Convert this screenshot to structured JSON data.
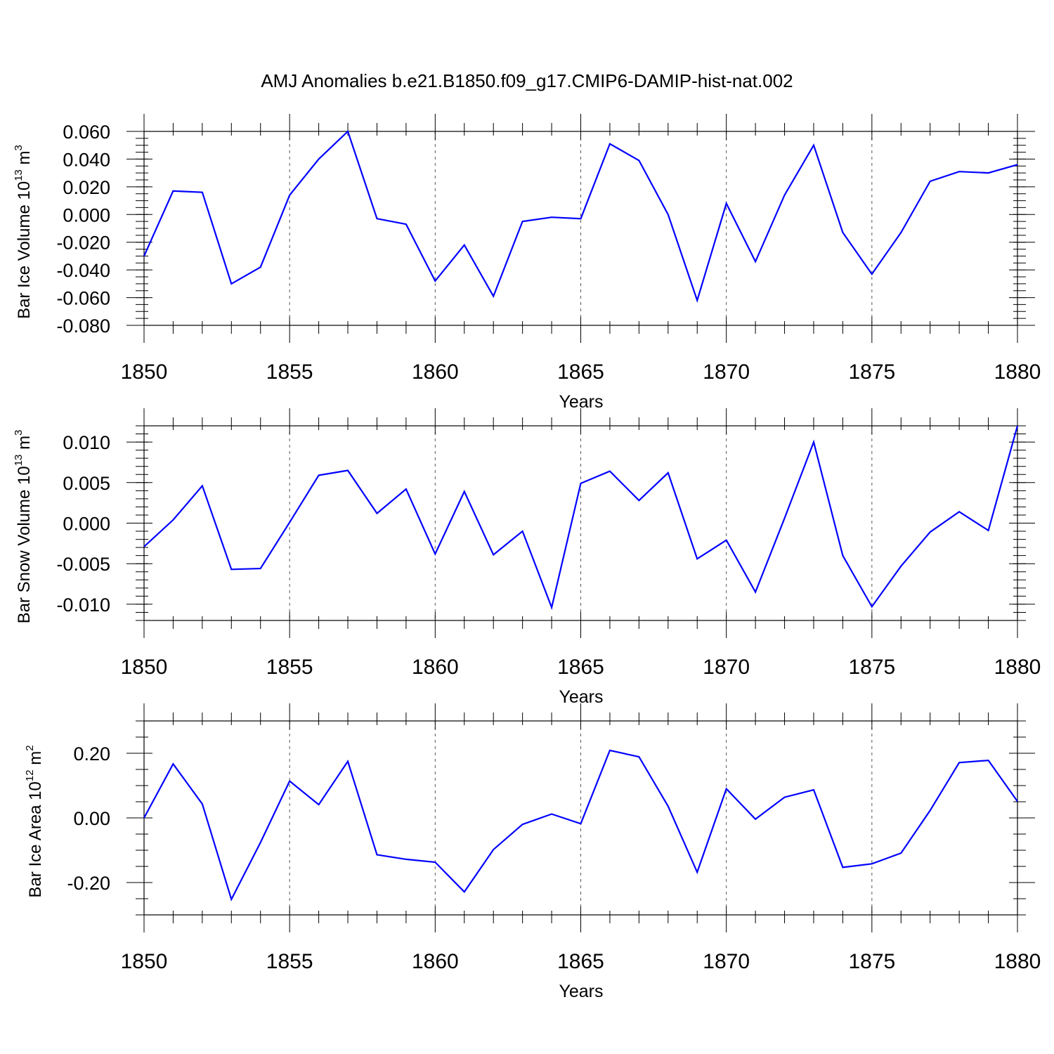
{
  "title": "AMJ Anomalies b.e21.B1850.f09_g17.CMIP6-DAMIP-hist-nat.002",
  "colors": {
    "series": "#0000ff",
    "axis": "#000000",
    "grid": "#555555"
  },
  "chart_data": [
    {
      "type": "line",
      "name": "bar-ice-volume",
      "ylabel_main": "Bar Ice Volume 10",
      "ylabel_exp": "13",
      "ylabel_unit": " m",
      "ylabel_unit_exp": "3",
      "xlabel": "Years",
      "xlim": [
        1850,
        1880
      ],
      "ylim": [
        -0.08,
        0.06
      ],
      "xticks": [
        1850,
        1855,
        1860,
        1865,
        1870,
        1875,
        1880
      ],
      "yticks": [
        -0.08,
        -0.06,
        -0.04,
        -0.02,
        0.0,
        0.02,
        0.04,
        0.06
      ],
      "ytick_labels": [
        "-0.080",
        "-0.060",
        "-0.040",
        "-0.020",
        "0.000",
        "0.020",
        "0.040",
        "0.060"
      ],
      "grid_x": [
        1855,
        1860,
        1865,
        1870,
        1875
      ],
      "x": [
        1850,
        1851,
        1852,
        1853,
        1854,
        1855,
        1856,
        1857,
        1858,
        1859,
        1860,
        1861,
        1862,
        1863,
        1864,
        1865,
        1866,
        1867,
        1868,
        1869,
        1870,
        1871,
        1872,
        1873,
        1874,
        1875,
        1876,
        1877,
        1878,
        1879,
        1880
      ],
      "y": [
        -0.03,
        0.017,
        0.016,
        -0.05,
        -0.038,
        0.014,
        0.04,
        0.06,
        -0.003,
        -0.007,
        -0.048,
        -0.022,
        -0.059,
        -0.005,
        -0.002,
        -0.003,
        0.051,
        0.039,
        0.0,
        -0.062,
        0.008,
        -0.034,
        0.014,
        0.05,
        -0.013,
        -0.043,
        -0.013,
        0.024,
        0.031,
        0.03,
        0.036
      ]
    },
    {
      "type": "line",
      "name": "bar-snow-volume",
      "ylabel_main": "Bar Snow Volume 10",
      "ylabel_exp": "13",
      "ylabel_unit": " m",
      "ylabel_unit_exp": "3",
      "xlabel": "Years",
      "xlim": [
        1850,
        1880
      ],
      "ylim": [
        -0.012,
        0.012
      ],
      "xticks": [
        1850,
        1855,
        1860,
        1865,
        1870,
        1875,
        1880
      ],
      "yticks": [
        -0.01,
        -0.005,
        0.0,
        0.005,
        0.01
      ],
      "ytick_labels": [
        "-0.010",
        "-0.005",
        "0.000",
        "0.005",
        "0.010"
      ],
      "grid_x": [
        1855,
        1860,
        1865,
        1870,
        1875
      ],
      "x": [
        1850,
        1851,
        1852,
        1853,
        1854,
        1855,
        1856,
        1857,
        1858,
        1859,
        1860,
        1861,
        1862,
        1863,
        1864,
        1865,
        1866,
        1867,
        1868,
        1869,
        1870,
        1871,
        1872,
        1873,
        1874,
        1875,
        1876,
        1877,
        1878,
        1879,
        1880
      ],
      "y": [
        -0.0029,
        0.0004,
        0.0046,
        -0.0057,
        -0.0056,
        0.0001,
        0.0059,
        0.0065,
        0.0012,
        0.0042,
        -0.0038,
        0.0039,
        -0.0039,
        -0.001,
        -0.0104,
        0.0049,
        0.0064,
        0.0028,
        0.0062,
        -0.0044,
        -0.0021,
        -0.0085,
        0.0006,
        0.01,
        -0.004,
        -0.0103,
        -0.0053,
        -0.0011,
        0.0014,
        -0.0009,
        0.012
      ]
    },
    {
      "type": "line",
      "name": "bar-ice-area",
      "ylabel_main": "Bar Ice Area 10",
      "ylabel_exp": "12",
      "ylabel_unit": " m",
      "ylabel_unit_exp": "2",
      "xlabel": "Years",
      "xlim": [
        1850,
        1880
      ],
      "ylim": [
        -0.3,
        0.3
      ],
      "xticks": [
        1850,
        1855,
        1860,
        1865,
        1870,
        1875,
        1880
      ],
      "yticks": [
        -0.2,
        0.0,
        0.2
      ],
      "ytick_labels": [
        "-0.20",
        "0.00",
        "0.20"
      ],
      "grid_x": [
        1855,
        1860,
        1865,
        1870,
        1875
      ],
      "x": [
        1850,
        1851,
        1852,
        1853,
        1854,
        1855,
        1856,
        1857,
        1858,
        1859,
        1860,
        1861,
        1862,
        1863,
        1864,
        1865,
        1866,
        1867,
        1868,
        1869,
        1870,
        1871,
        1872,
        1873,
        1874,
        1875,
        1876,
        1877,
        1878,
        1879,
        1880
      ],
      "y": [
        0.0,
        0.167,
        0.043,
        -0.252,
        -0.076,
        0.114,
        0.041,
        0.175,
        -0.114,
        -0.128,
        -0.137,
        -0.229,
        -0.098,
        -0.02,
        0.012,
        -0.018,
        0.209,
        0.189,
        0.036,
        -0.168,
        0.09,
        -0.004,
        0.064,
        0.087,
        -0.153,
        -0.142,
        -0.109,
        0.023,
        0.171,
        0.178,
        0.051
      ]
    }
  ]
}
